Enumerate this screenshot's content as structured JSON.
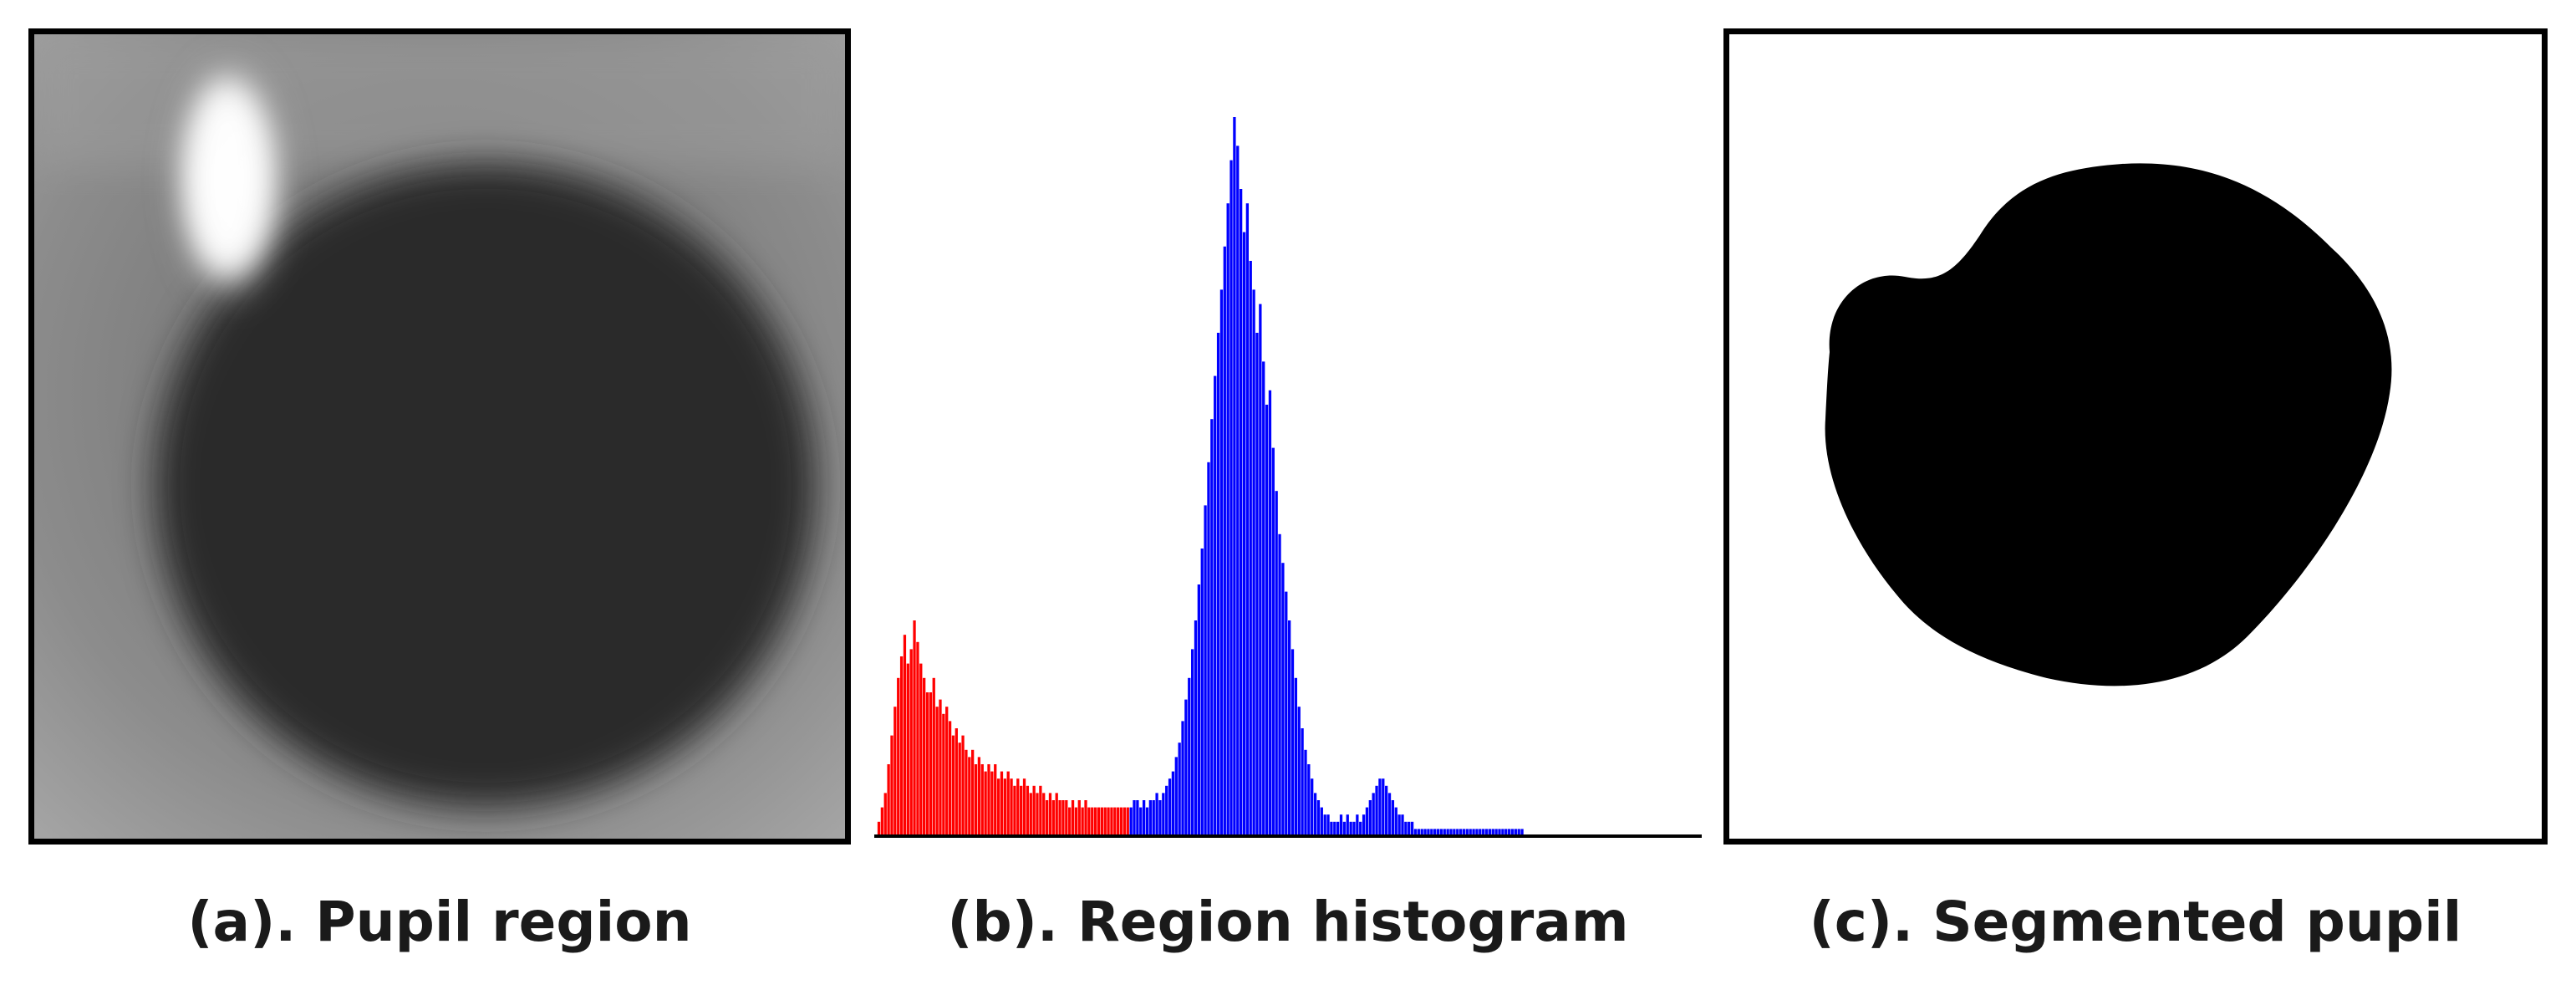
{
  "captions": {
    "a": "(a). Pupil region",
    "b": "(b). Region histogram",
    "c": "(c). Segmented pupil"
  },
  "colors": {
    "dark_pupil_class": "#ff0000",
    "bright_class": "#0000ff",
    "segmented_pupil": "#000000",
    "background": "#ffffff"
  },
  "chart_data": {
    "type": "bar",
    "series": [
      {
        "color": "#ff0000",
        "bins": [
          1,
          2,
          3,
          4,
          5,
          6,
          7,
          8,
          9,
          10,
          11,
          12,
          13,
          14,
          15,
          16,
          17,
          18,
          19,
          20,
          21,
          22,
          23,
          24,
          25,
          26,
          27,
          28,
          29,
          30,
          31,
          32,
          33,
          34,
          35,
          36,
          37,
          38,
          39,
          40,
          41,
          42,
          43,
          44,
          45,
          46,
          47,
          48,
          49,
          50,
          51,
          52,
          53,
          54,
          55,
          56,
          57,
          58,
          59,
          60,
          61,
          62,
          63,
          64,
          65,
          66,
          67,
          68,
          69,
          70,
          71,
          72,
          73,
          74,
          75,
          76,
          77,
          78
        ],
        "values": [
          2,
          4,
          6,
          10,
          14,
          18,
          22,
          25,
          28,
          24,
          26,
          30,
          27,
          24,
          22,
          20,
          20,
          22,
          18,
          19,
          17,
          18,
          16,
          14,
          15,
          13,
          14,
          12,
          11,
          12,
          10,
          11,
          10,
          9,
          10,
          9,
          10,
          8,
          9,
          8,
          9,
          8,
          7,
          8,
          7,
          8,
          7,
          6,
          7,
          6,
          7,
          6,
          5,
          6,
          5,
          6,
          5,
          5,
          5,
          4,
          5,
          4,
          5,
          4,
          5,
          4,
          4,
          4,
          4,
          4,
          4,
          4,
          4,
          4,
          4,
          4,
          4,
          4
        ]
      },
      {
        "color": "#0000ff",
        "bins": [
          79,
          80,
          81,
          82,
          83,
          84,
          85,
          86,
          87,
          88,
          89,
          90,
          91,
          92,
          93,
          94,
          95,
          96,
          97,
          98,
          99,
          100,
          101,
          102,
          103,
          104,
          105,
          106,
          107,
          108,
          109,
          110,
          111,
          112,
          113,
          114,
          115,
          116,
          117,
          118,
          119,
          120,
          121,
          122,
          123,
          124,
          125,
          126,
          127,
          128,
          129,
          130,
          131,
          132,
          133,
          134,
          135,
          136,
          137,
          138,
          139,
          140,
          141,
          142,
          143,
          144,
          145,
          146,
          147,
          148,
          149,
          150,
          151,
          152,
          153,
          154,
          155,
          156,
          157,
          158,
          159,
          160,
          161,
          162,
          163,
          164,
          165,
          166,
          167,
          168,
          169,
          170,
          171,
          172,
          173,
          174,
          175,
          176,
          177,
          178,
          179,
          180,
          181,
          182,
          183,
          184,
          185,
          186,
          187,
          188,
          189,
          190,
          191,
          192,
          193,
          194,
          195,
          196,
          197,
          198,
          199,
          200
        ],
        "values": [
          4,
          5,
          5,
          4,
          5,
          4,
          5,
          5,
          6,
          5,
          6,
          7,
          8,
          9,
          11,
          13,
          16,
          19,
          22,
          26,
          30,
          35,
          40,
          46,
          52,
          58,
          64,
          70,
          76,
          82,
          88,
          94,
          100,
          96,
          90,
          84,
          88,
          80,
          76,
          70,
          74,
          66,
          60,
          62,
          54,
          48,
          42,
          38,
          34,
          30,
          26,
          22,
          18,
          15,
          12,
          10,
          8,
          6,
          5,
          4,
          3,
          3,
          2,
          2,
          2,
          3,
          2,
          3,
          2,
          2,
          3,
          2,
          3,
          4,
          5,
          6,
          7,
          8,
          8,
          7,
          6,
          5,
          4,
          3,
          3,
          2,
          2,
          2,
          1,
          1,
          1,
          1,
          1,
          1,
          1,
          1,
          1,
          1,
          1,
          1,
          1,
          1,
          1,
          1,
          1,
          1,
          1,
          1,
          1,
          1,
          1,
          1,
          1,
          1,
          1,
          1,
          1,
          1,
          1,
          1,
          1,
          1
        ]
      }
    ],
    "xlim": [
      0,
      256
    ],
    "ylim": [
      0,
      100
    ]
  }
}
